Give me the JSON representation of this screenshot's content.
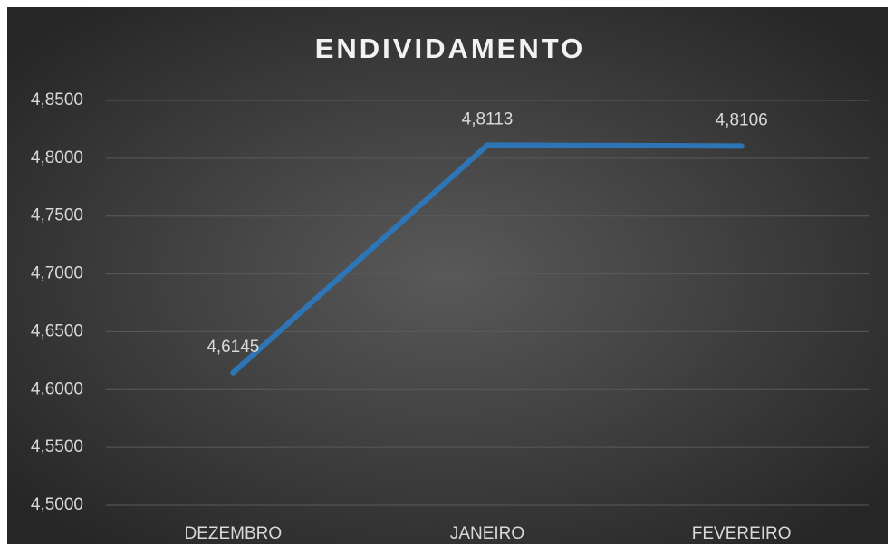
{
  "chart_data": {
    "type": "line",
    "title": "ENDIVIDAMENTO",
    "categories": [
      "DEZEMBRO",
      "JANEIRO",
      "FEVEREIRO"
    ],
    "series": [
      {
        "name": "ENDIVIDAMENTO",
        "color": "#2e75b6",
        "values": [
          4.6145,
          4.8113,
          4.8106
        ],
        "value_labels": [
          "4,6145",
          "4,8113",
          "4,8106"
        ]
      }
    ],
    "ylim": [
      4.5,
      4.85
    ],
    "yticks": [
      {
        "value": 4.5,
        "label": "4,5000"
      },
      {
        "value": 4.55,
        "label": "4,5500"
      },
      {
        "value": 4.6,
        "label": "4,6000"
      },
      {
        "value": 4.65,
        "label": "4,6500"
      },
      {
        "value": 4.7,
        "label": "4,7000"
      },
      {
        "value": 4.75,
        "label": "4,7500"
      },
      {
        "value": 4.8,
        "label": "4,8000"
      },
      {
        "value": 4.85,
        "label": "4,8500"
      }
    ],
    "grid": true
  }
}
